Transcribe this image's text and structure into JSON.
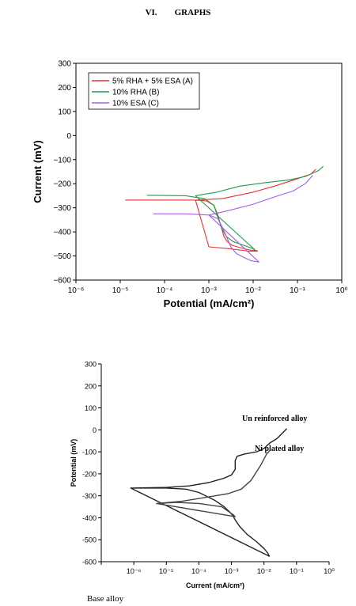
{
  "heading": {
    "number": "VI.",
    "title": "GRAPHS"
  },
  "chart_data": [
    {
      "type": "line",
      "xscale": "log",
      "xlim": [
        1e-06,
        1
      ],
      "ylim": [
        -600,
        300
      ],
      "xlabel": "Potential (mA/cm²)",
      "ylabel": "Current (mV)",
      "legend_position": "top-left",
      "xticks": [
        "10⁻⁶",
        "10⁻⁵",
        "10⁻⁴",
        "10⁻³",
        "10⁻²",
        "10⁻¹",
        "10⁰"
      ],
      "yticks": [
        -600,
        -500,
        -400,
        -300,
        -200,
        -100,
        0,
        100,
        200,
        300
      ],
      "series": [
        {
          "name": "5% RHA + 5% ESA (A)",
          "color": "#e8312f",
          "x": [
            1.3e-05,
            0.0001,
            0.0005,
            0.0009,
            0.0013,
            0.0016,
            0.0019,
            0.0022,
            0.0026,
            0.0033,
            0.005,
            0.008,
            0.0125,
            0.0125,
            0.008,
            0.003,
            0.001,
            0.0005,
            0.002,
            0.01,
            0.03,
            0.08,
            0.2,
            0.26
          ],
          "y": [
            -268,
            -268,
            -268,
            -272,
            -290,
            -330,
            -380,
            -420,
            -440,
            -455,
            -465,
            -475,
            -478,
            -480,
            -480,
            -470,
            -462,
            -268,
            -262,
            -235,
            -210,
            -185,
            -160,
            -140
          ]
        },
        {
          "name": "10% RHA (B)",
          "color": "#1e9b4e",
          "x": [
            4e-05,
            0.0003,
            0.0008,
            0.0013,
            0.0016,
            0.002,
            0.0025,
            0.0035,
            0.006,
            0.01,
            0.011,
            0.0005,
            0.0015,
            0.005,
            0.02,
            0.06,
            0.15,
            0.3,
            0.38
          ],
          "y": [
            -248,
            -250,
            -262,
            -290,
            -340,
            -390,
            -420,
            -440,
            -455,
            -470,
            -475,
            -250,
            -235,
            -210,
            -195,
            -185,
            -170,
            -145,
            -128
          ]
        },
        {
          "name": "10% ESA (C)",
          "color": "#a45ee5",
          "x": [
            5.5e-05,
            0.0003,
            0.001,
            0.0016,
            0.002,
            0.0025,
            0.0032,
            0.0042,
            0.006,
            0.009,
            0.0135,
            0.001,
            0.003,
            0.01,
            0.03,
            0.08,
            0.15,
            0.22
          ],
          "y": [
            -325,
            -325,
            -330,
            -345,
            -380,
            -420,
            -465,
            -490,
            -505,
            -520,
            -525,
            -330,
            -310,
            -285,
            -255,
            -230,
            -200,
            -165
          ]
        }
      ]
    },
    {
      "type": "line",
      "xscale": "log",
      "xlim": [
        1e-07,
        1
      ],
      "ylim": [
        -600,
        300
      ],
      "xlabel": "Current (mA/cm²)",
      "ylabel": "Potential (mV)",
      "xticks": [
        "10⁻⁶",
        "10⁻⁵",
        "10⁻⁴",
        "10⁻³",
        "10⁻²",
        "10⁻¹",
        "10⁰"
      ],
      "yticks": [
        -600,
        -500,
        -400,
        -300,
        -200,
        -100,
        0,
        100,
        200,
        300
      ],
      "annotations": [
        "Un reinforced alloy",
        "Ni plated alloy"
      ],
      "series": [
        {
          "color": "#222222",
          "x": [
            8e-07,
            1e-05,
            4e-05,
            0.0001,
            0.0003,
            0.0006,
            0.0009,
            0.0011,
            0.0013,
            0.0018,
            0.003,
            0.006,
            0.01,
            0.013,
            0.0145,
            8e-07,
            1e-05,
            5e-05,
            0.0002,
            0.0006,
            0.001,
            0.0013,
            0.0013,
            0.0015,
            0.0025,
            0.006,
            0.01,
            0.015,
            0.025,
            0.05
          ],
          "y": [
            -265,
            -265,
            -270,
            -285,
            -320,
            -350,
            -375,
            -390,
            -410,
            -440,
            -475,
            -510,
            -540,
            -560,
            -575,
            -265,
            -262,
            -255,
            -240,
            -220,
            -205,
            -180,
            -140,
            -120,
            -110,
            -100,
            -85,
            -60,
            -40,
            5
          ]
        },
        {
          "color": "#444444",
          "x": [
            5e-06,
            2e-05,
            0.0001,
            0.0005,
            0.0011,
            0.0013,
            5e-06,
            3e-05,
            0.0002,
            0.0008,
            0.002,
            0.004,
            0.008,
            0.012,
            0.015
          ],
          "y": [
            -335,
            -330,
            -335,
            -350,
            -385,
            -395,
            -335,
            -325,
            -305,
            -290,
            -270,
            -230,
            -160,
            -110,
            -95
          ]
        }
      ]
    }
  ],
  "caption": "Base alloy"
}
